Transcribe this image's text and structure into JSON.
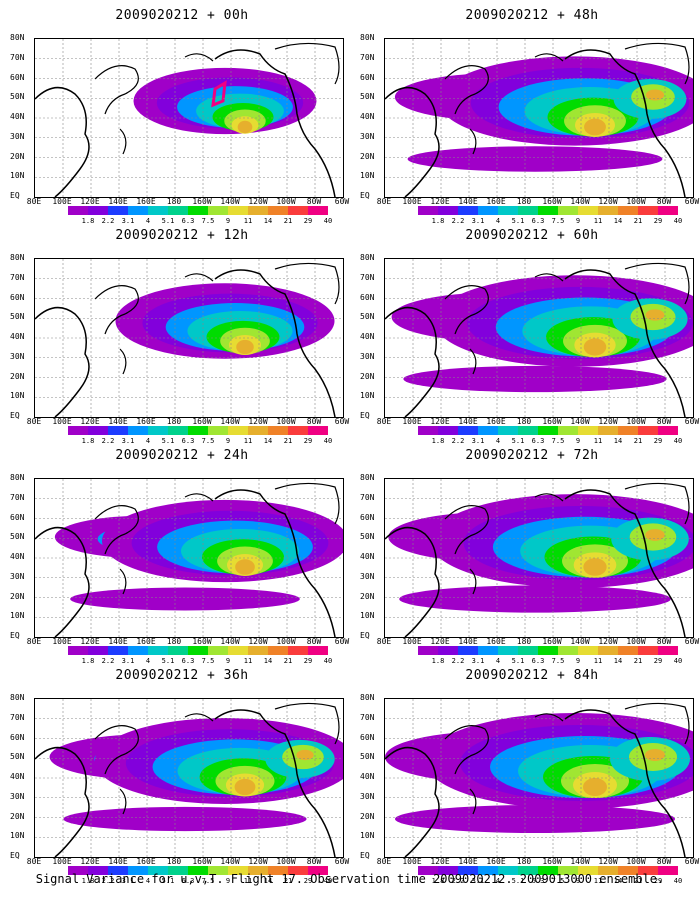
{
  "panels": [
    {
      "title": "2009020212 + 00h",
      "intensity": 0.35
    },
    {
      "title": "2009020212 + 48h",
      "intensity": 0.85
    },
    {
      "title": "2009020212 + 12h",
      "intensity": 0.55
    },
    {
      "title": "2009020212 + 60h",
      "intensity": 0.9
    },
    {
      "title": "2009020212 + 24h",
      "intensity": 0.7
    },
    {
      "title": "2009020212 + 72h",
      "intensity": 0.95
    },
    {
      "title": "2009020212 + 36h",
      "intensity": 0.78
    },
    {
      "title": "2009020212 + 84h",
      "intensity": 1.0
    }
  ],
  "lat_labels": [
    "80N",
    "70N",
    "60N",
    "50N",
    "40N",
    "30N",
    "20N",
    "10N",
    "EQ"
  ],
  "lon_labels": [
    "80E",
    "100E",
    "120E",
    "140E",
    "160E",
    "180",
    "160W",
    "140W",
    "120W",
    "100W",
    "80W",
    "60W"
  ],
  "colorbar": {
    "labels": [
      "1.8",
      "2.2",
      "3.1",
      "4",
      "5.1",
      "6.3",
      "7.5",
      "9",
      "11",
      "14",
      "21",
      "29",
      "40"
    ],
    "colors": [
      "#a000c8",
      "#8200dc",
      "#1e3cff",
      "#0096ff",
      "#00c8c8",
      "#00d28c",
      "#00dc00",
      "#a0e632",
      "#e6dc32",
      "#e6af2d",
      "#f08228",
      "#fa3c3c",
      "#f00082"
    ]
  },
  "footer": "Signal Variance for u,v,T. Flight 17. Observation time 2009020212. 2009013000 ensemble."
}
